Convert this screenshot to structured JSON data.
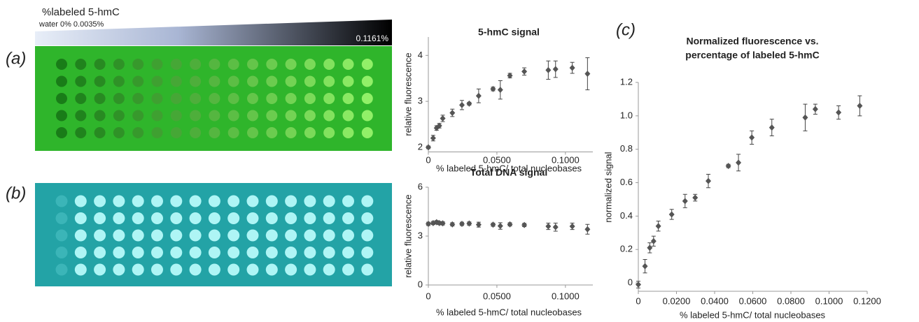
{
  "panels": {
    "a": "(a)",
    "b": "(b)",
    "c": "(c)",
    "gradient_title": "%labeled 5-hmC",
    "gradient_left": "water 0% 0.0035%",
    "gradient_right": "0.1161%"
  },
  "chart_data": [
    {
      "type": "scatter",
      "title": "5-hmC signal",
      "x_label": "% labeled 5-hmC/ total nucleobases",
      "y_label": "relative fluorescence",
      "color": "#555555",
      "x": [
        0,
        0.0035,
        0.006,
        0.008,
        0.0105,
        0.0175,
        0.0245,
        0.0298,
        0.0367,
        0.0472,
        0.0525,
        0.0595,
        0.07,
        0.0875,
        0.0928,
        0.105,
        0.1161
      ],
      "values": [
        2.0,
        2.2,
        2.42,
        2.47,
        2.63,
        2.75,
        2.92,
        2.95,
        3.12,
        3.27,
        3.25,
        3.56,
        3.65,
        3.68,
        3.7,
        3.73,
        3.6
      ],
      "errors": [
        0.03,
        0.06,
        0.05,
        0.05,
        0.07,
        0.08,
        0.1,
        0.03,
        0.15,
        0.04,
        0.2,
        0.05,
        0.08,
        0.2,
        0.18,
        0.12,
        0.35
      ],
      "xlim": [
        0,
        0.12
      ],
      "xticks": [
        0,
        {
          "value": 0.05,
          "label": "0.0500"
        },
        {
          "value": 0.1,
          "label": "0.1000"
        }
      ],
      "ylim": [
        1.9,
        4.4
      ],
      "yticks": [
        2,
        3,
        4
      ]
    },
    {
      "type": "scatter",
      "title": "Total DNA signal",
      "x_label": "% labeled 5-hmC/ total nucleobases",
      "y_label": "relative fluorescence",
      "color": "#555555",
      "x": [
        0,
        0.0035,
        0.006,
        0.008,
        0.0105,
        0.0175,
        0.0245,
        0.0298,
        0.0367,
        0.0472,
        0.0525,
        0.0595,
        0.07,
        0.0875,
        0.0928,
        0.105,
        0.1161
      ],
      "values": [
        3.75,
        3.8,
        3.85,
        3.8,
        3.78,
        3.72,
        3.75,
        3.77,
        3.7,
        3.7,
        3.62,
        3.72,
        3.68,
        3.6,
        3.55,
        3.6,
        3.42
      ],
      "errors": [
        0.1,
        0.1,
        0.1,
        0.1,
        0.1,
        0.1,
        0.1,
        0.1,
        0.15,
        0.1,
        0.2,
        0.1,
        0.1,
        0.2,
        0.25,
        0.2,
        0.3
      ],
      "xlim": [
        0,
        0.12
      ],
      "xticks": [
        0,
        {
          "value": 0.05,
          "label": "0.0500"
        },
        {
          "value": 0.1,
          "label": "0.1000"
        }
      ],
      "ylim": [
        0,
        6
      ],
      "yticks": [
        0,
        3,
        6
      ]
    },
    {
      "type": "scatter",
      "title": [
        "Normalized fluorescence vs.",
        "percentage of labeled 5-hmC"
      ],
      "x_label": "% labeled 5-hmC/ total nucleobases",
      "y_label": "normalized signal",
      "color": "#555555",
      "x": [
        0,
        0.0035,
        0.006,
        0.008,
        0.0105,
        0.0175,
        0.0245,
        0.0298,
        0.0367,
        0.0472,
        0.0525,
        0.0595,
        0.07,
        0.0875,
        0.0928,
        0.105,
        0.1161
      ],
      "values": [
        -0.01,
        0.1,
        0.21,
        0.25,
        0.34,
        0.41,
        0.49,
        0.51,
        0.61,
        0.7,
        0.72,
        0.87,
        0.93,
        0.99,
        1.04,
        1.02,
        1.06
      ],
      "errors": [
        0.02,
        0.04,
        0.03,
        0.03,
        0.03,
        0.03,
        0.04,
        0.02,
        0.04,
        0.01,
        0.05,
        0.04,
        0.05,
        0.08,
        0.03,
        0.04,
        0.06
      ],
      "xlim": [
        0,
        0.12
      ],
      "xticks": [
        0,
        {
          "value": 0.02,
          "label": "0.0200"
        },
        {
          "value": 0.04,
          "label": "0.0400"
        },
        {
          "value": 0.06,
          "label": "0.0600"
        },
        {
          "value": 0.08,
          "label": "0.0800"
        },
        {
          "value": 0.1,
          "label": "0.1000"
        },
        {
          "value": 0.12,
          "label": "0.1200"
        }
      ],
      "ylim": [
        -0.05,
        1.2
      ],
      "yticks": [
        0,
        0.2,
        0.4,
        0.6,
        0.8,
        {
          "value": 1,
          "label": "1.0"
        },
        1.2
      ]
    }
  ]
}
